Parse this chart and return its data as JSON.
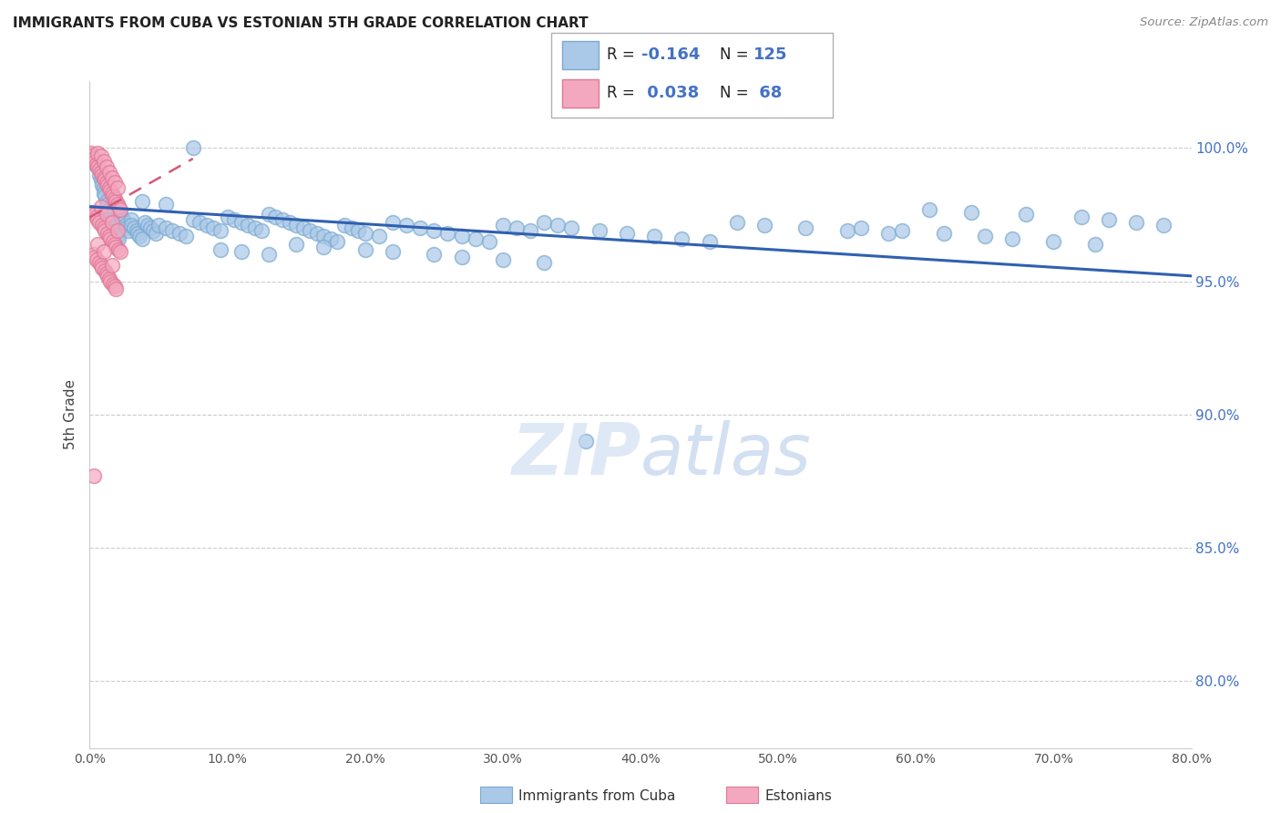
{
  "title": "IMMIGRANTS FROM CUBA VS ESTONIAN 5TH GRADE CORRELATION CHART",
  "source": "Source: ZipAtlas.com",
  "ylabel": "5th Grade",
  "ytick_labels": [
    "100.0%",
    "95.0%",
    "90.0%",
    "85.0%",
    "80.0%"
  ],
  "ytick_values": [
    1.0,
    0.95,
    0.9,
    0.85,
    0.8
  ],
  "xlim": [
    0.0,
    0.8
  ],
  "ylim": [
    0.775,
    1.025
  ],
  "legend_blue_label": "Immigrants from Cuba",
  "legend_pink_label": "Estonians",
  "blue_color": "#aac8e8",
  "pink_color": "#f4a8c0",
  "blue_edge_color": "#7aaad0",
  "pink_edge_color": "#e07898",
  "trend_blue_color": "#3060b0",
  "trend_pink_color": "#d45878",
  "blue_scatter_x": [
    0.002,
    0.004,
    0.006,
    0.007,
    0.008,
    0.009,
    0.01,
    0.01,
    0.011,
    0.012,
    0.013,
    0.014,
    0.015,
    0.015,
    0.016,
    0.017,
    0.018,
    0.019,
    0.02,
    0.02,
    0.021,
    0.022,
    0.023,
    0.024,
    0.025,
    0.026,
    0.027,
    0.028,
    0.03,
    0.03,
    0.032,
    0.034,
    0.035,
    0.036,
    0.038,
    0.04,
    0.042,
    0.044,
    0.046,
    0.048,
    0.05,
    0.055,
    0.06,
    0.065,
    0.07,
    0.075,
    0.08,
    0.085,
    0.09,
    0.095,
    0.1,
    0.105,
    0.11,
    0.115,
    0.12,
    0.125,
    0.13,
    0.135,
    0.14,
    0.145,
    0.15,
    0.155,
    0.16,
    0.165,
    0.17,
    0.175,
    0.18,
    0.185,
    0.19,
    0.195,
    0.2,
    0.21,
    0.22,
    0.23,
    0.24,
    0.25,
    0.26,
    0.27,
    0.28,
    0.29,
    0.3,
    0.31,
    0.32,
    0.33,
    0.34,
    0.35,
    0.37,
    0.39,
    0.41,
    0.43,
    0.45,
    0.47,
    0.49,
    0.52,
    0.55,
    0.58,
    0.61,
    0.64,
    0.68,
    0.72,
    0.74,
    0.76,
    0.78,
    0.56,
    0.59,
    0.62,
    0.65,
    0.67,
    0.7,
    0.73,
    0.038,
    0.055,
    0.075,
    0.095,
    0.11,
    0.13,
    0.15,
    0.17,
    0.2,
    0.22,
    0.25,
    0.27,
    0.3,
    0.33,
    0.36
  ],
  "blue_scatter_y": [
    0.996,
    0.994,
    0.993,
    0.99,
    0.988,
    0.986,
    0.985,
    0.983,
    0.982,
    0.98,
    0.979,
    0.977,
    0.976,
    0.975,
    0.973,
    0.972,
    0.97,
    0.969,
    0.968,
    0.967,
    0.966,
    0.975,
    0.974,
    0.973,
    0.972,
    0.971,
    0.97,
    0.969,
    0.973,
    0.971,
    0.97,
    0.969,
    0.968,
    0.967,
    0.966,
    0.972,
    0.971,
    0.97,
    0.969,
    0.968,
    0.971,
    0.97,
    0.969,
    0.968,
    0.967,
    0.973,
    0.972,
    0.971,
    0.97,
    0.969,
    0.974,
    0.973,
    0.972,
    0.971,
    0.97,
    0.969,
    0.975,
    0.974,
    0.973,
    0.972,
    0.971,
    0.97,
    0.969,
    0.968,
    0.967,
    0.966,
    0.965,
    0.971,
    0.97,
    0.969,
    0.968,
    0.967,
    0.972,
    0.971,
    0.97,
    0.969,
    0.968,
    0.967,
    0.966,
    0.965,
    0.971,
    0.97,
    0.969,
    0.972,
    0.971,
    0.97,
    0.969,
    0.968,
    0.967,
    0.966,
    0.965,
    0.972,
    0.971,
    0.97,
    0.969,
    0.968,
    0.977,
    0.976,
    0.975,
    0.974,
    0.973,
    0.972,
    0.971,
    0.97,
    0.969,
    0.968,
    0.967,
    0.966,
    0.965,
    0.964,
    0.98,
    0.979,
    1.0,
    0.962,
    0.961,
    0.96,
    0.964,
    0.963,
    0.962,
    0.961,
    0.96,
    0.959,
    0.958,
    0.957,
    0.89
  ],
  "pink_scatter_x": [
    0.001,
    0.002,
    0.003,
    0.004,
    0.005,
    0.006,
    0.006,
    0.007,
    0.008,
    0.008,
    0.009,
    0.01,
    0.01,
    0.011,
    0.012,
    0.012,
    0.013,
    0.014,
    0.014,
    0.015,
    0.016,
    0.016,
    0.017,
    0.018,
    0.018,
    0.019,
    0.02,
    0.02,
    0.021,
    0.022,
    0.003,
    0.004,
    0.005,
    0.006,
    0.007,
    0.008,
    0.009,
    0.01,
    0.011,
    0.012,
    0.013,
    0.014,
    0.015,
    0.016,
    0.017,
    0.018,
    0.019,
    0.02,
    0.021,
    0.022,
    0.003,
    0.004,
    0.005,
    0.006,
    0.007,
    0.008,
    0.009,
    0.01,
    0.011,
    0.012,
    0.013,
    0.014,
    0.015,
    0.016,
    0.017,
    0.018,
    0.019,
    0.003
  ],
  "pink_scatter_y": [
    0.998,
    0.997,
    0.996,
    0.995,
    0.994,
    0.993,
    0.998,
    0.992,
    0.991,
    0.997,
    0.99,
    0.989,
    0.995,
    0.988,
    0.987,
    0.993,
    0.986,
    0.985,
    0.991,
    0.984,
    0.983,
    0.989,
    0.982,
    0.981,
    0.987,
    0.98,
    0.979,
    0.985,
    0.978,
    0.977,
    0.976,
    0.975,
    0.974,
    0.973,
    0.972,
    0.978,
    0.971,
    0.97,
    0.969,
    0.975,
    0.968,
    0.967,
    0.966,
    0.972,
    0.965,
    0.964,
    0.963,
    0.969,
    0.962,
    0.961,
    0.96,
    0.959,
    0.958,
    0.964,
    0.957,
    0.956,
    0.955,
    0.961,
    0.954,
    0.953,
    0.952,
    0.951,
    0.95,
    0.956,
    0.949,
    0.948,
    0.947,
    0.877
  ],
  "blue_trend_x": [
    0.0,
    0.8
  ],
  "blue_trend_y": [
    0.978,
    0.952
  ],
  "pink_trend_x": [
    0.0,
    0.075
  ],
  "pink_trend_y": [
    0.974,
    0.996
  ]
}
